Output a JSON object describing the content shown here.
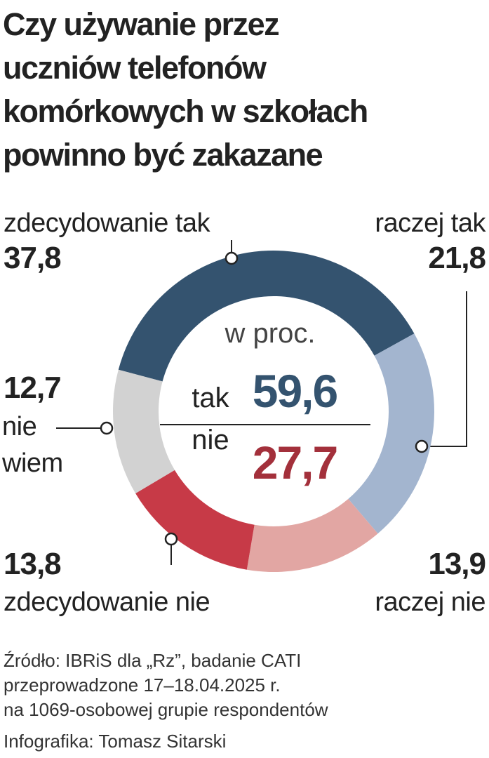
{
  "chart_data": {
    "type": "donut",
    "title_lines": [
      "Czy używanie przez",
      "uczniów telefonów",
      "komórkowych w szkołach",
      "powinno być zakazane"
    ],
    "categories": [
      "zdecydowanie tak",
      "raczej tak",
      "raczej nie",
      "zdecydowanie nie",
      "nie wiem"
    ],
    "values": [
      37.8,
      21.8,
      13.9,
      13.8,
      12.7
    ],
    "value_labels": [
      "37,8",
      "21,8",
      "13,9",
      "13,8",
      "12,7"
    ],
    "colors": [
      "#34536f",
      "#a3b5cf",
      "#e2a6a3",
      "#c73a47",
      "#d2d2d2"
    ],
    "center_label": "w proc.",
    "summary": [
      {
        "label": "tak",
        "value": 59.6,
        "value_label": "59,6",
        "color": "#34536f"
      },
      {
        "label": "nie",
        "value": 27.7,
        "value_label": "27,7",
        "color": "#a3303b"
      }
    ],
    "notes": [
      "Źródło: IBRiS dla „Rz”, badanie CATI",
      "przeprowadzone 17–18.04.2025 r.",
      "na 1069-osobowej grupie respondentów"
    ],
    "credit": "Infografika: Tomasz Sitarski"
  }
}
